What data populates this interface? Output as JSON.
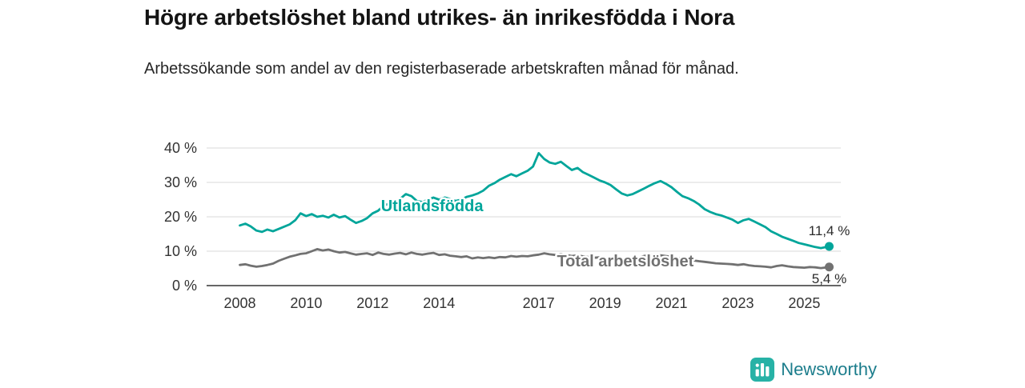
{
  "header": {
    "title": "Högre arbetslöshet bland utrikes- än inrikesfödda i Nora",
    "subtitle": "Arbetssökande som andel av den registerbaserade arbetskraften månad för månad."
  },
  "chart_data": {
    "type": "line",
    "title": "Högre arbetslöshet bland utrikes- än inrikesfödda i Nora",
    "xlabel": "",
    "ylabel": "",
    "xlim": [
      2007.0,
      2026.1
    ],
    "ylim": [
      0,
      40
    ],
    "grid": "horizontal",
    "legend_position": "inline-labels",
    "colors": {
      "grid": "#d8d8d8",
      "axis": "#333333",
      "tick_text": "#333333",
      "end_label_text": "#2b2b2b"
    },
    "yticks": [
      {
        "value": 0,
        "label": "0 %"
      },
      {
        "value": 10,
        "label": "10 %"
      },
      {
        "value": 20,
        "label": "20 %"
      },
      {
        "value": 30,
        "label": "30 %"
      },
      {
        "value": 40,
        "label": "40 %"
      }
    ],
    "xticks": [
      {
        "value": 2008,
        "label": "2008"
      },
      {
        "value": 2010,
        "label": "2010"
      },
      {
        "value": 2012,
        "label": "2012"
      },
      {
        "value": 2014,
        "label": "2014"
      },
      {
        "value": 2017,
        "label": "2017"
      },
      {
        "value": 2019,
        "label": "2019"
      },
      {
        "value": 2021,
        "label": "2021"
      },
      {
        "value": 2023,
        "label": "2023"
      },
      {
        "value": 2025,
        "label": "2025"
      }
    ],
    "series": [
      {
        "name": "Total arbetslöshet",
        "color": "#717171",
        "label": "Total arbetslöshet",
        "label_at": [
          2017.55,
          5.6
        ],
        "end_label": "5,4 %",
        "end_label_position": "below",
        "end_value": 5.4,
        "points": [
          [
            2008.0,
            6.0
          ],
          [
            2008.17,
            6.2
          ],
          [
            2008.33,
            5.8
          ],
          [
            2008.5,
            5.5
          ],
          [
            2008.67,
            5.7
          ],
          [
            2008.83,
            6.0
          ],
          [
            2009.0,
            6.4
          ],
          [
            2009.17,
            7.2
          ],
          [
            2009.33,
            7.8
          ],
          [
            2009.5,
            8.4
          ],
          [
            2009.67,
            8.8
          ],
          [
            2009.83,
            9.2
          ],
          [
            2010.0,
            9.4
          ],
          [
            2010.17,
            10.0
          ],
          [
            2010.33,
            10.6
          ],
          [
            2010.5,
            10.2
          ],
          [
            2010.67,
            10.5
          ],
          [
            2010.83,
            10.0
          ],
          [
            2011.0,
            9.6
          ],
          [
            2011.17,
            9.8
          ],
          [
            2011.33,
            9.4
          ],
          [
            2011.5,
            9.0
          ],
          [
            2011.67,
            9.2
          ],
          [
            2011.83,
            9.4
          ],
          [
            2012.0,
            8.9
          ],
          [
            2012.17,
            9.6
          ],
          [
            2012.33,
            9.2
          ],
          [
            2012.5,
            9.0
          ],
          [
            2012.67,
            9.3
          ],
          [
            2012.83,
            9.5
          ],
          [
            2013.0,
            9.1
          ],
          [
            2013.17,
            9.6
          ],
          [
            2013.33,
            9.2
          ],
          [
            2013.5,
            9.0
          ],
          [
            2013.67,
            9.3
          ],
          [
            2013.83,
            9.5
          ],
          [
            2014.0,
            8.9
          ],
          [
            2014.17,
            9.1
          ],
          [
            2014.33,
            8.7
          ],
          [
            2014.5,
            8.5
          ],
          [
            2014.67,
            8.3
          ],
          [
            2014.83,
            8.5
          ],
          [
            2015.0,
            7.9
          ],
          [
            2015.17,
            8.2
          ],
          [
            2015.33,
            8.0
          ],
          [
            2015.5,
            8.2
          ],
          [
            2015.67,
            8.0
          ],
          [
            2015.83,
            8.3
          ],
          [
            2016.0,
            8.2
          ],
          [
            2016.17,
            8.6
          ],
          [
            2016.33,
            8.4
          ],
          [
            2016.5,
            8.6
          ],
          [
            2016.67,
            8.5
          ],
          [
            2016.83,
            8.8
          ],
          [
            2017.0,
            9.0
          ],
          [
            2017.17,
            9.4
          ],
          [
            2017.33,
            9.1
          ],
          [
            2017.5,
            8.9
          ],
          [
            2017.67,
            9.2
          ],
          [
            2017.83,
            8.9
          ],
          [
            2018.0,
            8.6
          ],
          [
            2018.17,
            8.8
          ],
          [
            2018.33,
            8.5
          ],
          [
            2018.5,
            8.3
          ],
          [
            2018.67,
            8.1
          ],
          [
            2018.83,
            8.2
          ],
          [
            2019.0,
            7.9
          ],
          [
            2019.17,
            8.1
          ],
          [
            2019.33,
            7.8
          ],
          [
            2019.5,
            7.6
          ],
          [
            2019.67,
            7.7
          ],
          [
            2019.83,
            7.9
          ],
          [
            2020.0,
            8.1
          ],
          [
            2020.17,
            8.6
          ],
          [
            2020.33,
            8.9
          ],
          [
            2020.5,
            9.0
          ],
          [
            2020.67,
            8.8
          ],
          [
            2020.83,
            8.6
          ],
          [
            2021.0,
            8.4
          ],
          [
            2021.17,
            8.1
          ],
          [
            2021.33,
            7.8
          ],
          [
            2021.5,
            7.5
          ],
          [
            2021.67,
            7.3
          ],
          [
            2021.83,
            7.1
          ],
          [
            2022.0,
            6.9
          ],
          [
            2022.17,
            6.7
          ],
          [
            2022.33,
            6.5
          ],
          [
            2022.5,
            6.4
          ],
          [
            2022.67,
            6.3
          ],
          [
            2022.83,
            6.2
          ],
          [
            2023.0,
            6.0
          ],
          [
            2023.17,
            6.2
          ],
          [
            2023.33,
            5.9
          ],
          [
            2023.5,
            5.7
          ],
          [
            2023.67,
            5.6
          ],
          [
            2023.83,
            5.5
          ],
          [
            2024.0,
            5.3
          ],
          [
            2024.17,
            5.7
          ],
          [
            2024.33,
            5.9
          ],
          [
            2024.5,
            5.6
          ],
          [
            2024.67,
            5.4
          ],
          [
            2024.83,
            5.3
          ],
          [
            2025.0,
            5.2
          ],
          [
            2025.17,
            5.4
          ],
          [
            2025.33,
            5.3
          ],
          [
            2025.5,
            5.1
          ],
          [
            2025.75,
            5.4
          ]
        ]
      },
      {
        "name": "Utlandsfödda",
        "color": "#00a59a",
        "label": "Utlandsfödda",
        "label_at": [
          2012.25,
          21.6
        ],
        "end_label": "11,4 %",
        "end_label_position": "above",
        "end_value": 11.4,
        "points": [
          [
            2008.0,
            17.5
          ],
          [
            2008.17,
            18.0
          ],
          [
            2008.33,
            17.2
          ],
          [
            2008.5,
            16.0
          ],
          [
            2008.67,
            15.6
          ],
          [
            2008.83,
            16.3
          ],
          [
            2009.0,
            15.8
          ],
          [
            2009.25,
            16.8
          ],
          [
            2009.5,
            17.8
          ],
          [
            2009.67,
            19.0
          ],
          [
            2009.83,
            21.0
          ],
          [
            2010.0,
            20.2
          ],
          [
            2010.17,
            20.8
          ],
          [
            2010.33,
            20.0
          ],
          [
            2010.5,
            20.3
          ],
          [
            2010.67,
            19.8
          ],
          [
            2010.83,
            20.6
          ],
          [
            2011.0,
            19.8
          ],
          [
            2011.17,
            20.2
          ],
          [
            2011.33,
            19.2
          ],
          [
            2011.5,
            18.2
          ],
          [
            2011.67,
            18.8
          ],
          [
            2011.83,
            19.6
          ],
          [
            2012.0,
            21.0
          ],
          [
            2012.17,
            21.8
          ],
          [
            2012.33,
            23.3
          ],
          [
            2012.5,
            23.8
          ],
          [
            2012.67,
            24.3
          ],
          [
            2012.83,
            25.2
          ],
          [
            2013.0,
            26.6
          ],
          [
            2013.17,
            26.0
          ],
          [
            2013.33,
            24.6
          ],
          [
            2013.5,
            24.3
          ],
          [
            2013.67,
            25.0
          ],
          [
            2013.83,
            25.6
          ],
          [
            2014.0,
            25.0
          ],
          [
            2014.17,
            25.6
          ],
          [
            2014.33,
            25.2
          ],
          [
            2014.5,
            24.6
          ],
          [
            2014.67,
            25.0
          ],
          [
            2014.83,
            25.8
          ],
          [
            2015.0,
            26.2
          ],
          [
            2015.17,
            26.8
          ],
          [
            2015.33,
            27.6
          ],
          [
            2015.5,
            29.0
          ],
          [
            2015.67,
            29.8
          ],
          [
            2015.83,
            30.8
          ],
          [
            2016.0,
            31.6
          ],
          [
            2016.17,
            32.4
          ],
          [
            2016.33,
            31.8
          ],
          [
            2016.5,
            32.6
          ],
          [
            2016.67,
            33.4
          ],
          [
            2016.83,
            34.6
          ],
          [
            2017.0,
            38.5
          ],
          [
            2017.17,
            36.8
          ],
          [
            2017.33,
            35.8
          ],
          [
            2017.5,
            35.4
          ],
          [
            2017.67,
            36.0
          ],
          [
            2017.83,
            34.8
          ],
          [
            2018.0,
            33.6
          ],
          [
            2018.17,
            34.2
          ],
          [
            2018.33,
            33.0
          ],
          [
            2018.5,
            32.2
          ],
          [
            2018.67,
            31.4
          ],
          [
            2018.83,
            30.6
          ],
          [
            2019.0,
            30.0
          ],
          [
            2019.17,
            29.2
          ],
          [
            2019.33,
            28.0
          ],
          [
            2019.5,
            26.8
          ],
          [
            2019.67,
            26.2
          ],
          [
            2019.83,
            26.6
          ],
          [
            2020.0,
            27.4
          ],
          [
            2020.17,
            28.2
          ],
          [
            2020.33,
            29.0
          ],
          [
            2020.5,
            29.8
          ],
          [
            2020.67,
            30.4
          ],
          [
            2020.83,
            29.6
          ],
          [
            2021.0,
            28.6
          ],
          [
            2021.17,
            27.2
          ],
          [
            2021.33,
            26.0
          ],
          [
            2021.5,
            25.4
          ],
          [
            2021.67,
            24.6
          ],
          [
            2021.83,
            23.6
          ],
          [
            2022.0,
            22.2
          ],
          [
            2022.17,
            21.4
          ],
          [
            2022.33,
            20.8
          ],
          [
            2022.5,
            20.4
          ],
          [
            2022.67,
            19.8
          ],
          [
            2022.83,
            19.2
          ],
          [
            2023.0,
            18.2
          ],
          [
            2023.17,
            19.0
          ],
          [
            2023.33,
            19.4
          ],
          [
            2023.5,
            18.6
          ],
          [
            2023.67,
            17.8
          ],
          [
            2023.83,
            17.0
          ],
          [
            2024.0,
            15.8
          ],
          [
            2024.17,
            15.0
          ],
          [
            2024.33,
            14.2
          ],
          [
            2024.5,
            13.6
          ],
          [
            2024.67,
            13.0
          ],
          [
            2024.83,
            12.4
          ],
          [
            2025.0,
            12.0
          ],
          [
            2025.17,
            11.6
          ],
          [
            2025.33,
            11.2
          ],
          [
            2025.5,
            10.9
          ],
          [
            2025.75,
            11.4
          ]
        ]
      }
    ]
  },
  "footer": {
    "brand": "Newsworthy",
    "brand_icon": "bar-chart-icon",
    "brand_icon_color": "#27b2a6",
    "brand_text_color": "#1c7d8c"
  }
}
